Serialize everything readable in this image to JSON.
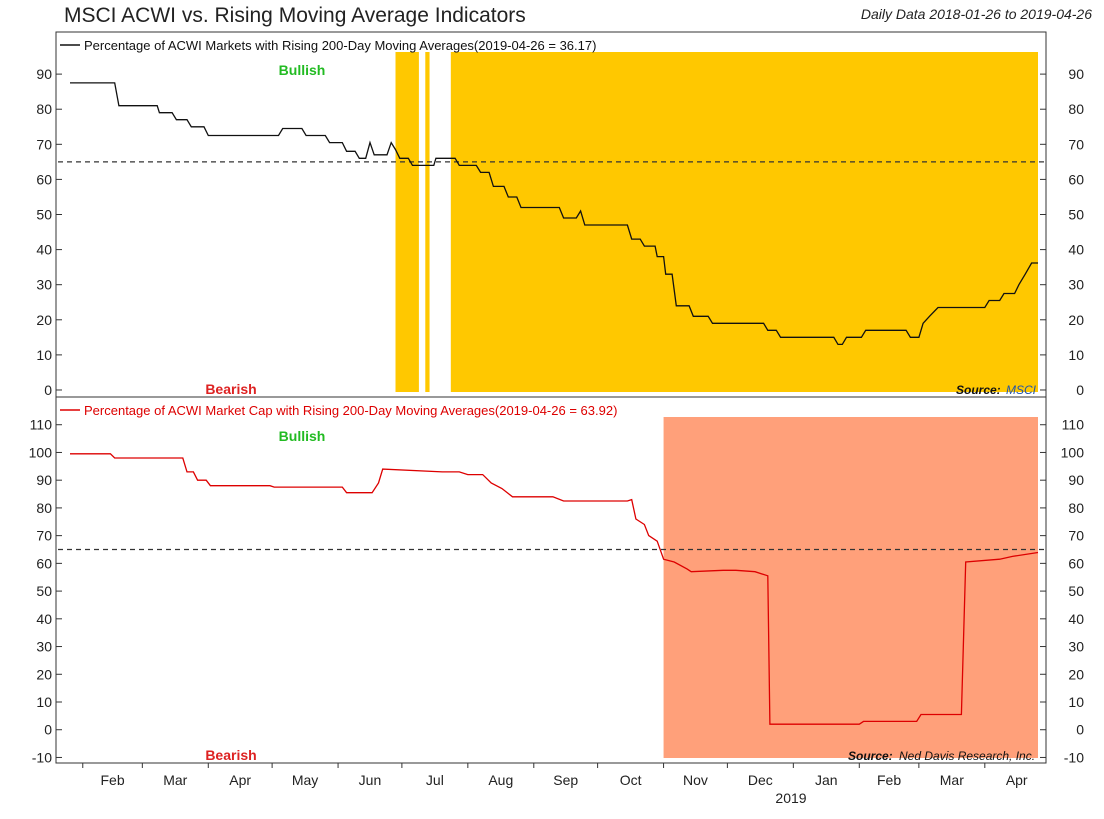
{
  "header": {
    "title": "MSCI ACWI vs. Rising Moving Average Indicators",
    "date_range": "Daily Data 2018-01-26 to 2019-04-26"
  },
  "x_axis": {
    "months": [
      "Feb",
      "Mar",
      "Apr",
      "May",
      "Jun",
      "Jul",
      "Aug",
      "Sep",
      "Oct",
      "Nov",
      "Dec",
      "Jan",
      "Feb",
      "Mar",
      "Apr"
    ],
    "year_label": "2019"
  },
  "colors": {
    "upper_shade": "#FFC800",
    "lower_shade": "#FFA07A",
    "bullish": "#22BB22",
    "bearish": "#DD2222",
    "upper_line": "#111111",
    "lower_line": "#DD0000"
  },
  "chart_data": [
    {
      "type": "line",
      "panel": "top",
      "title": "Percentage of ACWI Markets with Rising 200-Day Moving Averages(2019-04-26 = 36.17)",
      "legend": "Percentage of ACWI Markets with Rising 200-Day Moving Averages(2019-04-26 = 36.17)",
      "x_range": [
        "2018-01-26",
        "2019-04-26"
      ],
      "ylim": [
        -2,
        102
      ],
      "yticks": [
        0,
        10,
        20,
        30,
        40,
        50,
        60,
        70,
        80,
        90
      ],
      "threshold": 65,
      "bullish_label": "Bullish",
      "bearish_label": "Bearish",
      "source_label": "Source:",
      "source_name": "MSCI",
      "shaded_periods": [
        [
          "2018-06-28",
          "2018-07-09"
        ],
        [
          "2018-07-12",
          "2018-07-14"
        ],
        [
          "2018-07-24",
          "2019-04-26"
        ]
      ],
      "points": [
        [
          "2018-01-26",
          87.5
        ],
        [
          "2018-02-16",
          87.5
        ],
        [
          "2018-02-18",
          81
        ],
        [
          "2018-03-08",
          81
        ],
        [
          "2018-03-09",
          79
        ],
        [
          "2018-03-15",
          79
        ],
        [
          "2018-03-17",
          77
        ],
        [
          "2018-03-22",
          77
        ],
        [
          "2018-03-24",
          75
        ],
        [
          "2018-03-30",
          75
        ],
        [
          "2018-04-01",
          72.5
        ],
        [
          "2018-05-04",
          72.5
        ],
        [
          "2018-05-06",
          74.5
        ],
        [
          "2018-05-15",
          74.5
        ],
        [
          "2018-05-17",
          72.5
        ],
        [
          "2018-05-26",
          72.5
        ],
        [
          "2018-05-28",
          70.5
        ],
        [
          "2018-06-03",
          70.5
        ],
        [
          "2018-06-05",
          68
        ],
        [
          "2018-06-09",
          68
        ],
        [
          "2018-06-11",
          66
        ],
        [
          "2018-06-14",
          66
        ],
        [
          "2018-06-16",
          70.5
        ],
        [
          "2018-06-18",
          67
        ],
        [
          "2018-06-24",
          67
        ],
        [
          "2018-06-26",
          70.5
        ],
        [
          "2018-06-28",
          68.5
        ],
        [
          "2018-06-30",
          66
        ],
        [
          "2018-07-04",
          66
        ],
        [
          "2018-07-06",
          64
        ],
        [
          "2018-07-16",
          64
        ],
        [
          "2018-07-17",
          66
        ],
        [
          "2018-07-26",
          66
        ],
        [
          "2018-07-28",
          64
        ],
        [
          "2018-08-05",
          64
        ],
        [
          "2018-08-07",
          62
        ],
        [
          "2018-08-11",
          62
        ],
        [
          "2018-08-13",
          58
        ],
        [
          "2018-08-18",
          58
        ],
        [
          "2018-08-20",
          55
        ],
        [
          "2018-08-24",
          55
        ],
        [
          "2018-08-26",
          52
        ],
        [
          "2018-09-13",
          52
        ],
        [
          "2018-09-15",
          49
        ],
        [
          "2018-09-21",
          49
        ],
        [
          "2018-09-23",
          51
        ],
        [
          "2018-09-25",
          47
        ],
        [
          "2018-10-15",
          47
        ],
        [
          "2018-10-17",
          43
        ],
        [
          "2018-10-21",
          43
        ],
        [
          "2018-10-23",
          41
        ],
        [
          "2018-10-28",
          41
        ],
        [
          "2018-10-29",
          38
        ],
        [
          "2018-11-01",
          38
        ],
        [
          "2018-11-02",
          33
        ],
        [
          "2018-11-05",
          33
        ],
        [
          "2018-11-07",
          24
        ],
        [
          "2018-11-13",
          24
        ],
        [
          "2018-11-15",
          21
        ],
        [
          "2018-11-22",
          21
        ],
        [
          "2018-11-24",
          19
        ],
        [
          "2018-12-18",
          19
        ],
        [
          "2018-12-20",
          17
        ],
        [
          "2018-12-24",
          17
        ],
        [
          "2018-12-26",
          15
        ],
        [
          "2019-01-20",
          15
        ],
        [
          "2019-01-22",
          13
        ],
        [
          "2019-01-24",
          13
        ],
        [
          "2019-01-26",
          15
        ],
        [
          "2019-02-02",
          15
        ],
        [
          "2019-02-04",
          17
        ],
        [
          "2019-02-23",
          17
        ],
        [
          "2019-02-25",
          15
        ],
        [
          "2019-03-01",
          15
        ],
        [
          "2019-03-03",
          19
        ],
        [
          "2019-03-06",
          21
        ],
        [
          "2019-03-10",
          23.5
        ],
        [
          "2019-04-01",
          23.5
        ],
        [
          "2019-04-03",
          25.5
        ],
        [
          "2019-04-08",
          25.5
        ],
        [
          "2019-04-10",
          27.5
        ],
        [
          "2019-04-15",
          27.5
        ],
        [
          "2019-04-17",
          30
        ],
        [
          "2019-04-20",
          33
        ],
        [
          "2019-04-23",
          36.17
        ],
        [
          "2019-04-26",
          36.17
        ]
      ]
    },
    {
      "type": "line",
      "panel": "bottom",
      "title": "Percentage of ACWI Market Cap with Rising 200-Day Moving Averages(2019-04-26 = 63.92)",
      "legend": "Percentage of ACWI Market Cap with Rising 200-Day Moving Averages(2019-04-26 = 63.92)",
      "x_range": [
        "2018-01-26",
        "2019-04-26"
      ],
      "ylim": [
        -12,
        120
      ],
      "yticks": [
        -10,
        0,
        10,
        20,
        30,
        40,
        50,
        60,
        70,
        80,
        90,
        100,
        110
      ],
      "threshold": 65,
      "bullish_label": "Bullish",
      "bearish_label": "Bearish",
      "source_label": "Source:",
      "source_name": "Ned Davis Research, Inc.",
      "shaded_periods": [
        [
          "2018-11-01",
          "2019-04-26"
        ]
      ],
      "points": [
        [
          "2018-01-26",
          99.5
        ],
        [
          "2018-02-14",
          99.5
        ],
        [
          "2018-02-16",
          98
        ],
        [
          "2018-03-20",
          98
        ],
        [
          "2018-03-22",
          93
        ],
        [
          "2018-03-25",
          93
        ],
        [
          "2018-03-27",
          90
        ],
        [
          "2018-03-31",
          90
        ],
        [
          "2018-04-02",
          88
        ],
        [
          "2018-04-30",
          88
        ],
        [
          "2018-05-02",
          87.5
        ],
        [
          "2018-06-03",
          87.5
        ],
        [
          "2018-06-05",
          85.5
        ],
        [
          "2018-06-17",
          85.5
        ],
        [
          "2018-06-20",
          89
        ],
        [
          "2018-06-22",
          94
        ],
        [
          "2018-07-20",
          93
        ],
        [
          "2018-07-28",
          93
        ],
        [
          "2018-08-01",
          92
        ],
        [
          "2018-08-08",
          92
        ],
        [
          "2018-08-12",
          89
        ],
        [
          "2018-08-17",
          87
        ],
        [
          "2018-08-22",
          84
        ],
        [
          "2018-09-10",
          84
        ],
        [
          "2018-09-15",
          82.5
        ],
        [
          "2018-10-15",
          82.5
        ],
        [
          "2018-10-17",
          83
        ],
        [
          "2018-10-19",
          76
        ],
        [
          "2018-10-23",
          74
        ],
        [
          "2018-10-25",
          70
        ],
        [
          "2018-10-29",
          68
        ],
        [
          "2018-11-01",
          61.5
        ],
        [
          "2018-11-06",
          60.5
        ],
        [
          "2018-11-12",
          58
        ],
        [
          "2018-11-14",
          57
        ],
        [
          "2018-11-29",
          57.5
        ],
        [
          "2018-12-05",
          57.5
        ],
        [
          "2018-12-14",
          57
        ],
        [
          "2018-12-20",
          55.5
        ],
        [
          "2018-12-21",
          2
        ],
        [
          "2019-02-01",
          2
        ],
        [
          "2019-02-03",
          3
        ],
        [
          "2019-02-28",
          3
        ],
        [
          "2019-03-02",
          5.5
        ],
        [
          "2019-03-21",
          5.5
        ],
        [
          "2019-03-23",
          60.5
        ],
        [
          "2019-04-08",
          61.5
        ],
        [
          "2019-04-14",
          62.5
        ],
        [
          "2019-04-26",
          63.92
        ]
      ]
    }
  ]
}
